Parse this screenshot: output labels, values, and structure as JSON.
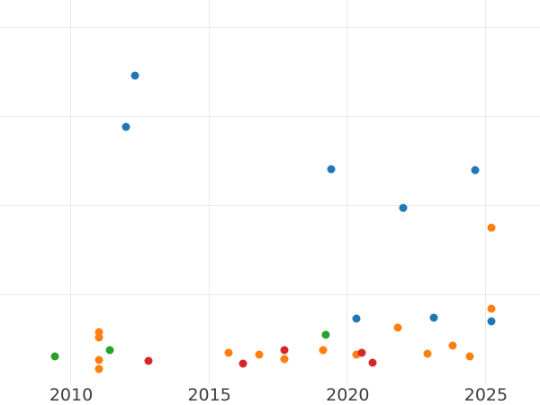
{
  "figure": {
    "background_color": "#ffffff",
    "grid_color": "#e8e8e8",
    "tick_label_color": "#3d3d3d"
  },
  "chart_data": {
    "type": "scatter",
    "title": "",
    "xlabel": "",
    "ylabel": "",
    "grid": true,
    "legend_position": "none",
    "x_ticks": [
      2010,
      2015,
      2020,
      2025
    ],
    "x_tick_labels": [
      "2010",
      "2015",
      "2020",
      "2025"
    ],
    "xlim": [
      2007.4,
      2027.0
    ],
    "ylim": [
      -0.23,
      4.31
    ],
    "y_gridline_values": [
      1,
      2,
      3,
      4
    ],
    "y_unit": "gridline units (no y tick labels visible; 0 = bottom of plot area)",
    "series": [
      {
        "name": "blue",
        "color": "#1f77b4",
        "points": [
          [
            2012.0,
            2.89
          ],
          [
            2012.3,
            3.46
          ],
          [
            2019.4,
            2.41
          ],
          [
            2020.3,
            0.74
          ],
          [
            2022.0,
            1.98
          ],
          [
            2023.1,
            0.75
          ],
          [
            2024.6,
            2.4
          ],
          [
            2025.2,
            0.71
          ]
        ]
      },
      {
        "name": "orange",
        "color": "#ff7f0e",
        "points": [
          [
            2011.0,
            0.59
          ],
          [
            2011.0,
            0.53
          ],
          [
            2011.0,
            0.27
          ],
          [
            2011.0,
            0.17
          ],
          [
            2015.7,
            0.35
          ],
          [
            2016.8,
            0.33
          ],
          [
            2017.7,
            0.28
          ],
          [
            2019.1,
            0.38
          ],
          [
            2020.3,
            0.33
          ],
          [
            2021.8,
            0.64
          ],
          [
            2022.9,
            0.34
          ],
          [
            2023.8,
            0.43
          ],
          [
            2024.4,
            0.31
          ],
          [
            2025.2,
            1.76
          ],
          [
            2025.2,
            0.85
          ]
        ]
      },
      {
        "name": "green",
        "color": "#2ca02c",
        "points": [
          [
            2009.4,
            0.31
          ],
          [
            2011.4,
            0.38
          ],
          [
            2019.2,
            0.56
          ]
        ]
      },
      {
        "name": "red",
        "color": "#d62728",
        "points": [
          [
            2012.8,
            0.26
          ],
          [
            2016.2,
            0.23
          ],
          [
            2017.7,
            0.38
          ],
          [
            2020.5,
            0.35
          ],
          [
            2020.9,
            0.24
          ]
        ]
      }
    ]
  }
}
